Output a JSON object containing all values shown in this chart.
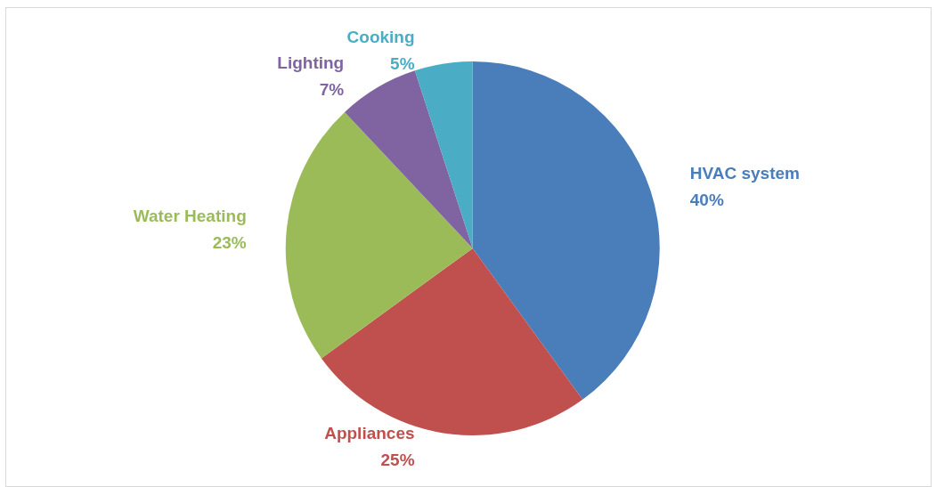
{
  "chart_data": {
    "type": "pie",
    "categories": [
      "HVAC system",
      "Appliances",
      "Water Heating",
      "Lighting",
      "Cooking"
    ],
    "values": [
      40,
      25,
      23,
      7,
      5
    ],
    "value_labels": [
      "40%",
      "25%",
      "23%",
      "7%",
      "5%"
    ],
    "colors": [
      "#4a7ebb",
      "#c0504d",
      "#9bbb59",
      "#8064a2",
      "#4bacc6"
    ],
    "legend": false
  }
}
